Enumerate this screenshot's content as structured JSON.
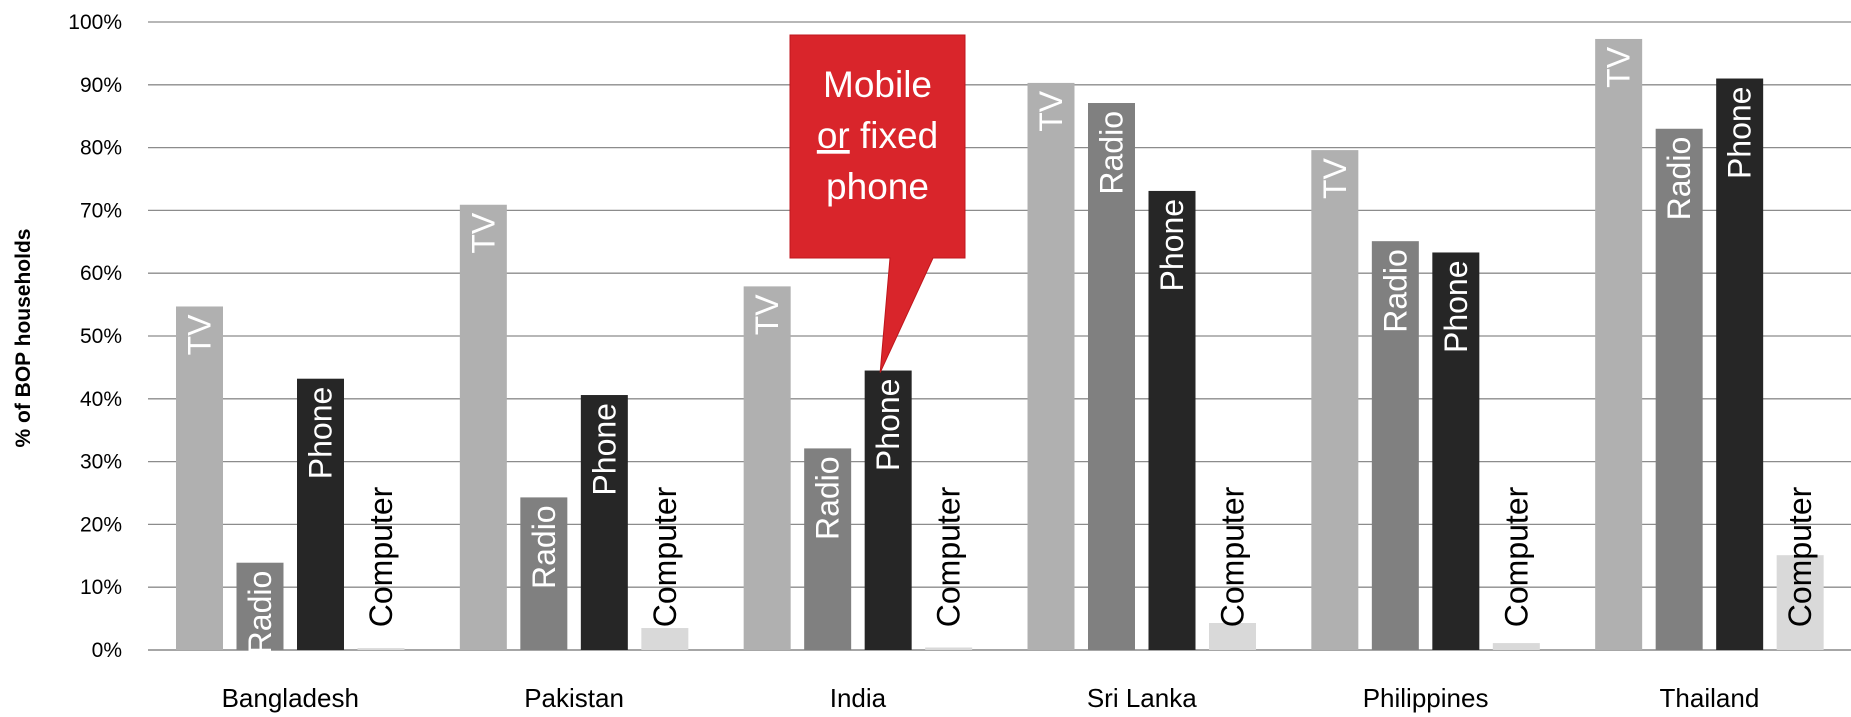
{
  "chart_data": {
    "type": "bar",
    "ylabel": "% of BOP households",
    "ylim": [
      0,
      100
    ],
    "yticks": [
      "0%",
      "10%",
      "20%",
      "30%",
      "40%",
      "50%",
      "60%",
      "70%",
      "80%",
      "90%",
      "100%"
    ],
    "grid": true,
    "categories": [
      "Bangladesh",
      "Pakistan",
      "India",
      "Sri Lanka",
      "Philippines",
      "Thailand"
    ],
    "series": [
      {
        "name": "TV",
        "color": "#b0b0b0",
        "label_color": "#ffffff",
        "values": [
          54.7,
          70.9,
          57.9,
          90.3,
          79.6,
          97.3
        ]
      },
      {
        "name": "Radio",
        "color": "#808080",
        "label_color": "#ffffff",
        "values": [
          13.9,
          24.3,
          32.1,
          87.1,
          65.1,
          83.0
        ]
      },
      {
        "name": "Phone",
        "color": "#262626",
        "label_color": "#ffffff",
        "values": [
          43.2,
          40.6,
          44.5,
          73.1,
          63.3,
          91.0
        ]
      },
      {
        "name": "Computer",
        "color": "#d9d9d9",
        "label_color": "#000000",
        "values": [
          0.3,
          3.5,
          0.4,
          4.3,
          1.1,
          15.1
        ]
      }
    ],
    "annotation": {
      "lines": [
        "Mobile",
        "or fixed",
        "phone"
      ],
      "underlined_word": "or",
      "color": "#d9252b",
      "points_to": {
        "category": "India",
        "series": "Phone"
      }
    }
  }
}
